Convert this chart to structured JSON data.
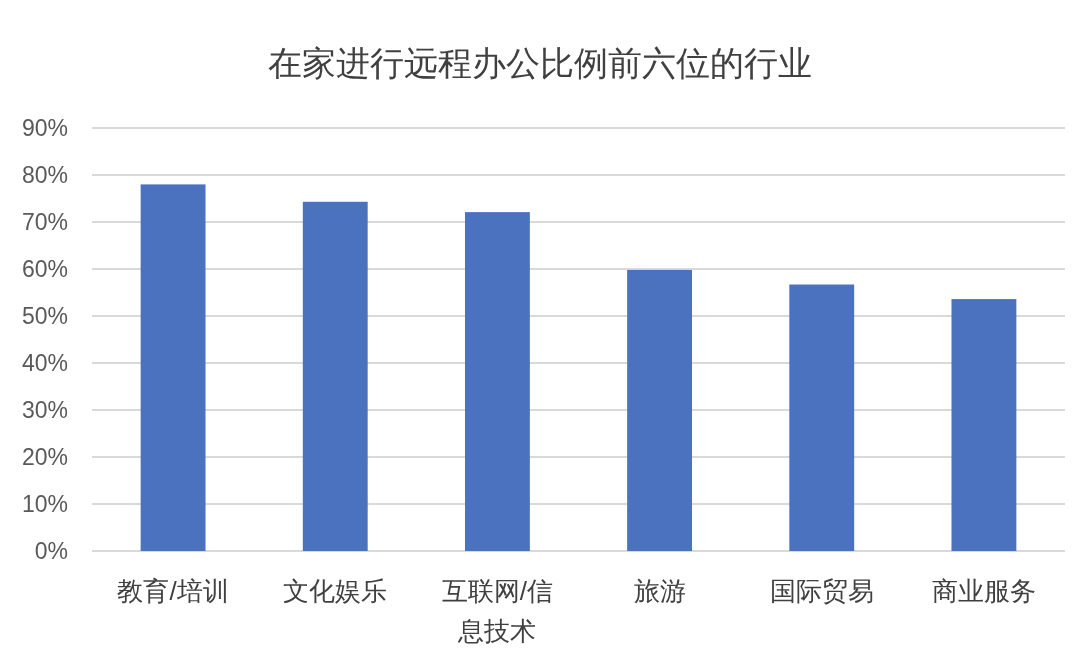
{
  "chart_data": {
    "type": "bar",
    "title": "在家进行远程办公比例前六位的行业",
    "categories": [
      "教育/培训",
      "文化娱乐",
      "互联网/信息技术",
      "旅游",
      "国际贸易",
      "商业服务"
    ],
    "values": [
      78,
      74.3,
      72.1,
      59.8,
      56.7,
      53.6
    ],
    "color": "#4a72bf",
    "ylim": [
      0,
      90
    ],
    "yticks": [
      {
        "value": 0,
        "label": "0%"
      },
      {
        "value": 10,
        "label": "10%"
      },
      {
        "value": 20,
        "label": "20%"
      },
      {
        "value": 30,
        "label": "30%"
      },
      {
        "value": 40,
        "label": "40%"
      },
      {
        "value": 50,
        "label": "50%"
      },
      {
        "value": 60,
        "label": "60%"
      },
      {
        "value": 70,
        "label": "70%"
      },
      {
        "value": 80,
        "label": "80%"
      },
      {
        "value": 90,
        "label": "90%"
      }
    ],
    "grid": "y"
  }
}
